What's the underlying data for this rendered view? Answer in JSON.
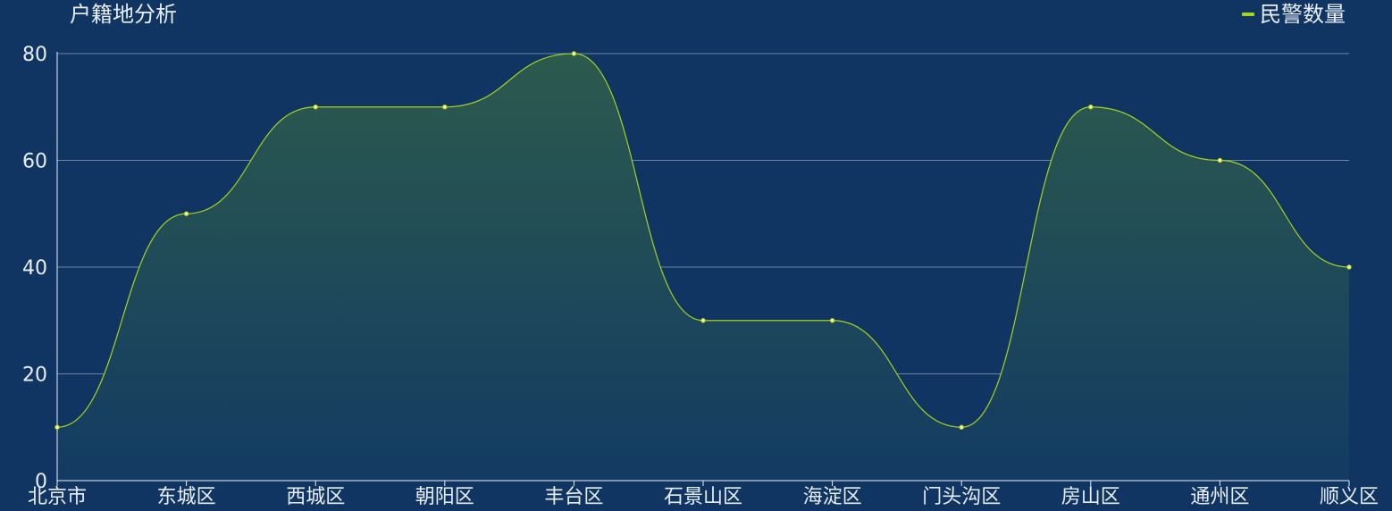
{
  "chart_data": {
    "type": "area",
    "title": "户籍地分析",
    "legend_position": "top-right",
    "grid": true,
    "smooth": true,
    "categories": [
      "北京市",
      "东城区",
      "西城区",
      "朝阳区",
      "丰台区",
      "石景山区",
      "海淀区",
      "门头沟区",
      "房山区",
      "通州区",
      "顺义区"
    ],
    "series": [
      {
        "name": "民警数量",
        "color": "#a8d21e",
        "values": [
          10,
          50,
          70,
          70,
          80,
          30,
          30,
          10,
          70,
          60,
          40
        ]
      }
    ],
    "y_ticks": [
      "0",
      "20",
      "40",
      "60",
      "80"
    ],
    "ylim": [
      0,
      80
    ],
    "colors": {
      "background": "#113563",
      "line": "#a8d21e",
      "grid": "#6f86a3",
      "text": "#e8eef8"
    }
  }
}
